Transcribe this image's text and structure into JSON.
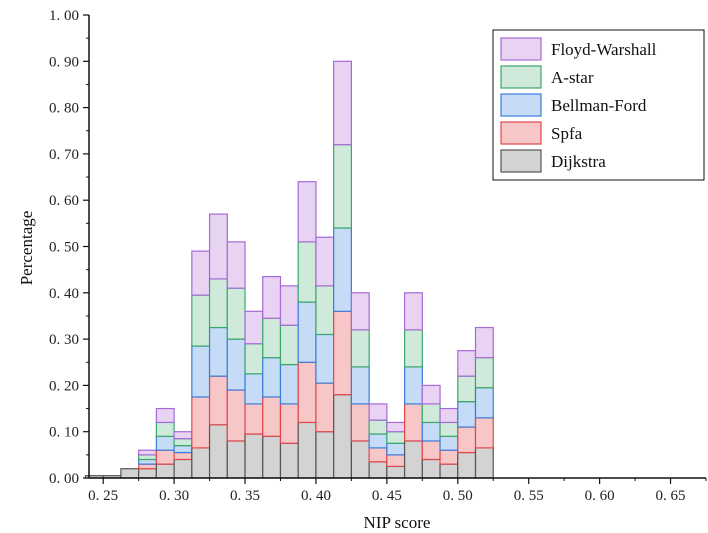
{
  "chart_data": {
    "type": "bar",
    "stacked": true,
    "xlabel": "NIP score",
    "ylabel": "Percentage",
    "xlim": [
      0.24,
      0.675
    ],
    "ylim": [
      0,
      1.0
    ],
    "x_ticks": [
      0.25,
      0.3,
      0.35,
      0.4,
      0.45,
      0.5,
      0.55,
      0.6,
      0.65
    ],
    "x_tick_labels": [
      "0. 25",
      "0. 30",
      "0. 35",
      "0. 40",
      "0. 45",
      "0. 50",
      "0. 55",
      "0. 60",
      "0. 65"
    ],
    "y_ticks": [
      0,
      0.1,
      0.2,
      0.3,
      0.4,
      0.5,
      0.6,
      0.7,
      0.8,
      0.9,
      1.0
    ],
    "y_tick_labels": [
      "0. 00",
      "0. 10",
      "0. 20",
      "0. 30",
      "0. 40",
      "0. 50",
      "0. 60",
      "0. 70",
      "0. 80",
      "0. 90",
      "1. 00"
    ],
    "bin_width": 0.0125,
    "bin_starts": [
      0.2375,
      0.25,
      0.2625,
      0.275,
      0.2875,
      0.3,
      0.3125,
      0.325,
      0.3375,
      0.35,
      0.3625,
      0.375,
      0.3875,
      0.4,
      0.4125,
      0.425,
      0.4375,
      0.45,
      0.4625,
      0.475,
      0.4875,
      0.5,
      0.5125,
      0.525,
      0.5375,
      0.55,
      0.5625,
      0.575,
      0.5875,
      0.6,
      0.6125,
      0.625,
      0.6375
    ],
    "legend_position": "top-right",
    "series": [
      {
        "name": "Dijkstra",
        "color": "#d3d3d3",
        "edge": "#555555",
        "values": [
          0.005,
          0.005,
          0.02,
          0.02,
          0.03,
          0.04,
          0.065,
          0.115,
          0.08,
          0.095,
          0.09,
          0.075,
          0.12,
          0.1,
          0.18,
          0.08,
          0.035,
          0.025,
          0.08,
          0.04,
          0.03,
          0.055,
          0.065,
          0,
          0,
          0,
          0,
          0,
          0,
          0,
          0,
          0,
          0
        ]
      },
      {
        "name": "Spfa",
        "color": "#f7c6c6",
        "edge": "#e0474c",
        "values": [
          0,
          0,
          0,
          0.01,
          0.03,
          0.015,
          0.11,
          0.105,
          0.11,
          0.065,
          0.085,
          0.085,
          0.13,
          0.105,
          0.18,
          0.08,
          0.03,
          0.025,
          0.08,
          0.04,
          0.03,
          0.055,
          0.065,
          0,
          0,
          0,
          0,
          0,
          0,
          0,
          0,
          0,
          0
        ]
      },
      {
        "name": "Bellman-Ford",
        "color": "#c6dbf5",
        "edge": "#3b7ddd",
        "values": [
          0,
          0,
          0,
          0.01,
          0.03,
          0.015,
          0.11,
          0.105,
          0.11,
          0.065,
          0.085,
          0.085,
          0.13,
          0.105,
          0.18,
          0.08,
          0.03,
          0.025,
          0.08,
          0.04,
          0.03,
          0.055,
          0.065,
          0,
          0,
          0,
          0,
          0,
          0,
          0,
          0,
          0,
          0
        ]
      },
      {
        "name": "A-star",
        "color": "#cfeadb",
        "edge": "#3aa868",
        "values": [
          0,
          0,
          0,
          0.01,
          0.03,
          0.015,
          0.11,
          0.105,
          0.11,
          0.065,
          0.085,
          0.085,
          0.13,
          0.105,
          0.18,
          0.08,
          0.03,
          0.025,
          0.08,
          0.04,
          0.03,
          0.055,
          0.065,
          0,
          0,
          0,
          0,
          0,
          0,
          0,
          0,
          0,
          0
        ]
      },
      {
        "name": "Floyd-Warshall",
        "color": "#e9d3f3",
        "edge": "#a56ad6",
        "values": [
          0,
          0,
          0,
          0.01,
          0.03,
          0.015,
          0.095,
          0.14,
          0.1,
          0.07,
          0.09,
          0.085,
          0.13,
          0.105,
          0.18,
          0.08,
          0.035,
          0.02,
          0.08,
          0.04,
          0.03,
          0.055,
          0.065,
          0,
          0,
          0,
          0,
          0,
          0,
          0,
          0,
          0,
          0
        ]
      }
    ]
  }
}
